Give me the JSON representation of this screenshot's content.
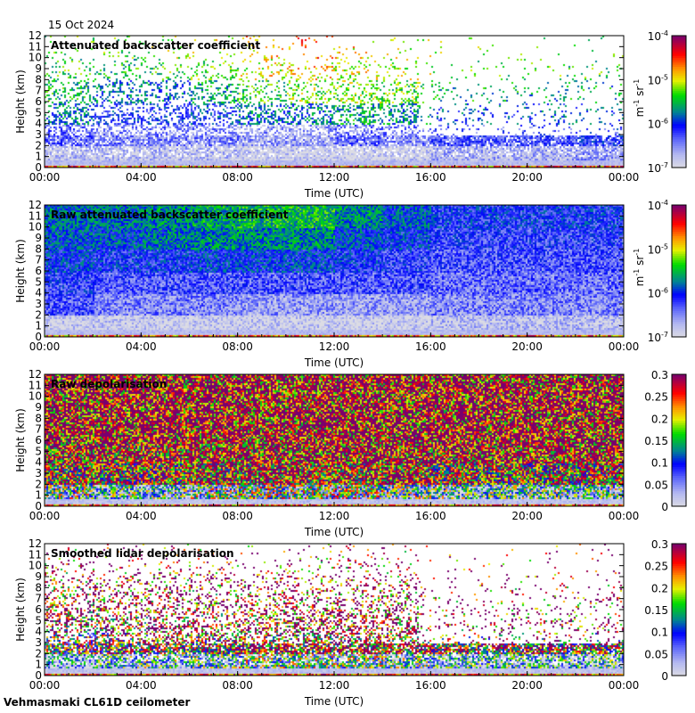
{
  "date": "15 Oct 2024",
  "footer": "Vehmasmaki CL61D ceilometer",
  "chart_data": [
    {
      "type": "heatmap",
      "title": "Attenuated backscatter coefficient",
      "xlabel": "Time (UTC)",
      "ylabel": "Height (km)",
      "xticks": [
        "00:00",
        "04:00",
        "08:00",
        "12:00",
        "16:00",
        "20:00",
        "00:00"
      ],
      "yticks": [
        "0",
        "1",
        "2",
        "3",
        "4",
        "5",
        "6",
        "7",
        "8",
        "9",
        "10",
        "11",
        "12"
      ],
      "ylim": [
        0,
        12
      ],
      "xlim_hours": [
        0,
        24
      ],
      "colorbar": {
        "scale": "log",
        "range": [
          1e-07,
          0.0001
        ],
        "ticks": [
          "10",
          "10",
          "10",
          "10"
        ],
        "exponents": [
          "-7",
          "-6",
          "-5",
          "-4"
        ],
        "unit": "m",
        "unit_exp": "-1",
        "unit2": "sr",
        "unit2_exp": "-1"
      },
      "fill": "sparse",
      "time_bins_hours": [
        0,
        2,
        4,
        6,
        8,
        10,
        12,
        14,
        16,
        18,
        20,
        22
      ],
      "height_bins_km": [
        0,
        2,
        4,
        6,
        8,
        10
      ],
      "log10_values": [
        [
          -6.8,
          -6.4,
          -5.8,
          -5.5,
          -5.4,
          -5.3
        ],
        [
          -6.8,
          -6.5,
          -6.1,
          -5.8,
          -5.5,
          -5.3
        ],
        [
          -6.8,
          -6.5,
          -6.1,
          -5.8,
          -5.4,
          -5.2
        ],
        [
          -6.8,
          -6.5,
          -6.0,
          -5.6,
          -5.3,
          -5.0
        ],
        [
          -6.9,
          -6.6,
          -5.8,
          -5.4,
          -5.0,
          -4.8
        ],
        [
          -6.9,
          -6.6,
          -5.8,
          -5.2,
          -4.9,
          -4.7
        ],
        [
          -6.9,
          -6.4,
          -5.6,
          -5.2,
          -5.0,
          -4.9
        ],
        [
          -6.9,
          -6.5,
          -5.7,
          -5.3,
          -5.1,
          -5.0
        ],
        [
          -6.7,
          -6.3,
          -5.9,
          -5.6,
          -5.4,
          -5.3
        ],
        [
          -6.7,
          -6.3,
          -5.9,
          -5.6,
          -5.4,
          -5.3
        ],
        [
          -6.7,
          -6.3,
          -5.9,
          -5.6,
          -5.4,
          -5.3
        ],
        [
          -6.6,
          -6.2,
          -5.9,
          -5.6,
          -5.4,
          -5.3
        ]
      ]
    },
    {
      "type": "heatmap",
      "title": "Raw attenuated backscatter coefficient",
      "xlabel": "Time (UTC)",
      "ylabel": "Height (km)",
      "xticks": [
        "00:00",
        "04:00",
        "08:00",
        "12:00",
        "16:00",
        "20:00",
        "00:00"
      ],
      "yticks": [
        "0",
        "1",
        "2",
        "3",
        "4",
        "5",
        "6",
        "7",
        "8",
        "9",
        "10",
        "11",
        "12"
      ],
      "ylim": [
        0,
        12
      ],
      "xlim_hours": [
        0,
        24
      ],
      "colorbar": {
        "scale": "log",
        "range": [
          1e-07,
          0.0001
        ],
        "ticks": [
          "10",
          "10",
          "10",
          "10"
        ],
        "exponents": [
          "-7",
          "-6",
          "-5",
          "-4"
        ],
        "unit": "m",
        "unit_exp": "-1",
        "unit2": "sr",
        "unit2_exp": "-1"
      },
      "fill": "dense",
      "time_bins_hours": [
        0,
        2,
        4,
        6,
        8,
        10,
        12,
        14,
        16,
        18,
        20,
        22
      ],
      "height_bins_km": [
        0,
        2,
        4,
        6,
        8,
        10
      ],
      "log10_values": [
        [
          -6.9,
          -6.3,
          -6.2,
          -6.0,
          -5.9,
          -5.8
        ],
        [
          -6.9,
          -6.5,
          -6.3,
          -6.1,
          -5.9,
          -5.8
        ],
        [
          -6.9,
          -6.5,
          -6.3,
          -6.1,
          -5.8,
          -5.7
        ],
        [
          -6.9,
          -6.5,
          -6.3,
          -6.0,
          -5.7,
          -5.6
        ],
        [
          -6.9,
          -6.6,
          -6.3,
          -6.0,
          -5.7,
          -5.5
        ],
        [
          -6.9,
          -6.6,
          -6.3,
          -6.0,
          -5.7,
          -5.5
        ],
        [
          -6.9,
          -6.6,
          -6.3,
          -6.1,
          -5.9,
          -5.7
        ],
        [
          -6.9,
          -6.6,
          -6.3,
          -6.2,
          -6.0,
          -5.9
        ],
        [
          -6.8,
          -6.5,
          -6.4,
          -6.3,
          -6.2,
          -6.1
        ],
        [
          -6.8,
          -6.5,
          -6.4,
          -6.3,
          -6.2,
          -6.1
        ],
        [
          -6.8,
          -6.5,
          -6.4,
          -6.3,
          -6.2,
          -6.1
        ],
        [
          -6.8,
          -6.5,
          -6.4,
          -6.3,
          -6.2,
          -6.1
        ]
      ]
    },
    {
      "type": "heatmap",
      "title": "Raw depolarisation",
      "xlabel": "Time (UTC)",
      "ylabel": "Height (km)",
      "xticks": [
        "00:00",
        "04:00",
        "08:00",
        "12:00",
        "16:00",
        "20:00",
        "00:00"
      ],
      "yticks": [
        "0",
        "1",
        "2",
        "3",
        "4",
        "5",
        "6",
        "7",
        "8",
        "9",
        "10",
        "11",
        "12"
      ],
      "ylim": [
        0,
        12
      ],
      "xlim_hours": [
        0,
        24
      ],
      "colorbar": {
        "scale": "linear",
        "range": [
          0,
          0.3
        ],
        "ticks": [
          "0",
          "0.05",
          "0.1",
          "0.15",
          "0.2",
          "0.25",
          "0.3"
        ]
      },
      "fill": "dense",
      "time_bins_hours": [
        0,
        2,
        4,
        6,
        8,
        10,
        12,
        14,
        16,
        18,
        20,
        22
      ],
      "height_bins_km": [
        0,
        2,
        4,
        6,
        8,
        10
      ],
      "values": [
        [
          0.12,
          0.22,
          0.26,
          0.28,
          0.28,
          0.28
        ],
        [
          0.1,
          0.22,
          0.26,
          0.28,
          0.28,
          0.28
        ],
        [
          0.1,
          0.22,
          0.26,
          0.28,
          0.28,
          0.28
        ],
        [
          0.12,
          0.24,
          0.27,
          0.28,
          0.28,
          0.28
        ],
        [
          0.14,
          0.25,
          0.27,
          0.28,
          0.28,
          0.28
        ],
        [
          0.14,
          0.25,
          0.27,
          0.28,
          0.28,
          0.28
        ],
        [
          0.14,
          0.25,
          0.27,
          0.28,
          0.28,
          0.28
        ],
        [
          0.12,
          0.25,
          0.27,
          0.28,
          0.28,
          0.28
        ],
        [
          0.1,
          0.22,
          0.27,
          0.28,
          0.28,
          0.28
        ],
        [
          0.1,
          0.22,
          0.27,
          0.28,
          0.28,
          0.28
        ],
        [
          0.1,
          0.22,
          0.27,
          0.28,
          0.28,
          0.28
        ],
        [
          0.1,
          0.22,
          0.27,
          0.28,
          0.28,
          0.28
        ]
      ]
    },
    {
      "type": "heatmap",
      "title": "Smoothed lidar depolarisation",
      "xlabel": "Time (UTC)",
      "ylabel": "Height (km)",
      "xticks": [
        "00:00",
        "04:00",
        "08:00",
        "12:00",
        "16:00",
        "20:00",
        "00:00"
      ],
      "yticks": [
        "0",
        "1",
        "2",
        "3",
        "4",
        "5",
        "6",
        "7",
        "8",
        "9",
        "10",
        "11",
        "12"
      ],
      "ylim": [
        0,
        12
      ],
      "xlim_hours": [
        0,
        24
      ],
      "colorbar": {
        "scale": "linear",
        "range": [
          0,
          0.3
        ],
        "ticks": [
          "0",
          "0.05",
          "0.1",
          "0.15",
          "0.2",
          "0.25",
          "0.3"
        ]
      },
      "fill": "sparse",
      "time_bins_hours": [
        0,
        2,
        4,
        6,
        8,
        10,
        12,
        14,
        16,
        18,
        20,
        22
      ],
      "height_bins_km": [
        0,
        2,
        4,
        6,
        8,
        10
      ],
      "values": [
        [
          0.05,
          0.18,
          0.24,
          0.26,
          0.27,
          0.28
        ],
        [
          0.08,
          0.2,
          0.25,
          0.27,
          0.28,
          0.28
        ],
        [
          0.1,
          0.22,
          0.26,
          0.27,
          0.28,
          0.28
        ],
        [
          0.1,
          0.22,
          0.26,
          0.27,
          0.28,
          0.28
        ],
        [
          0.12,
          0.24,
          0.27,
          0.28,
          0.28,
          0.28
        ],
        [
          0.12,
          0.24,
          0.27,
          0.28,
          0.28,
          0.28
        ],
        [
          0.12,
          0.24,
          0.27,
          0.28,
          0.28,
          0.28
        ],
        [
          0.1,
          0.24,
          0.27,
          0.28,
          0.28,
          0.28
        ],
        [
          0.08,
          0.22,
          0.27,
          0.28,
          0.28,
          0.28
        ],
        [
          0.08,
          0.22,
          0.27,
          0.28,
          0.28,
          0.28
        ],
        [
          0.08,
          0.22,
          0.27,
          0.28,
          0.28,
          0.28
        ],
        [
          0.08,
          0.22,
          0.27,
          0.28,
          0.28,
          0.28
        ]
      ]
    }
  ]
}
